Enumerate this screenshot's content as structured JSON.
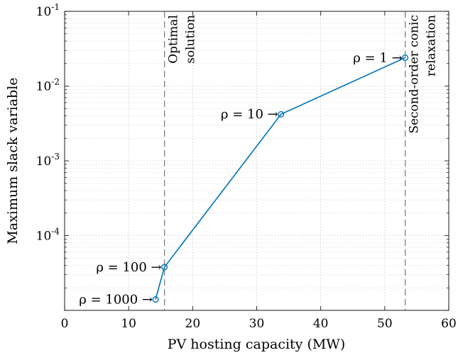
{
  "chart_data": {
    "type": "line",
    "xlabel": "PV hosting capacity (MW)",
    "ylabel": "Maximum slack variable",
    "xlim": [
      0,
      60
    ],
    "ylim": [
      1e-05,
      0.1
    ],
    "yscale": "log",
    "grid": true,
    "minor_grid": true,
    "x_ticks": [
      "0",
      "10",
      "20",
      "30",
      "40",
      "50",
      "60"
    ],
    "x_tick_values": [
      0,
      10,
      20,
      30,
      40,
      50,
      60
    ],
    "y_ticks": [
      {
        "base": "10",
        "exp": "-4",
        "value": 0.0001
      },
      {
        "base": "10",
        "exp": "-3",
        "value": 0.001
      },
      {
        "base": "10",
        "exp": "-2",
        "value": 0.01
      },
      {
        "base": "10",
        "exp": "-1",
        "value": 0.1
      }
    ],
    "series": [
      {
        "color": "#0072BD",
        "marker": "circle",
        "x": [
          14.2,
          15.6,
          33.8,
          53.2
        ],
        "y": [
          1.4e-05,
          3.8e-05,
          0.0042,
          0.024
        ],
        "point_labels": [
          "ρ = 1000 →",
          "ρ = 100 →",
          "ρ = 10 →",
          "ρ = 1 →"
        ]
      }
    ],
    "vertical_lines": [
      {
        "x": 15.6,
        "label_lines": [
          "Optimal",
          "solution"
        ],
        "color": "#808080",
        "style": "dashed"
      },
      {
        "x": 53.2,
        "label_lines": [
          "Second-order conic",
          "relaxation"
        ],
        "color": "#808080",
        "style": "dashed"
      }
    ]
  }
}
